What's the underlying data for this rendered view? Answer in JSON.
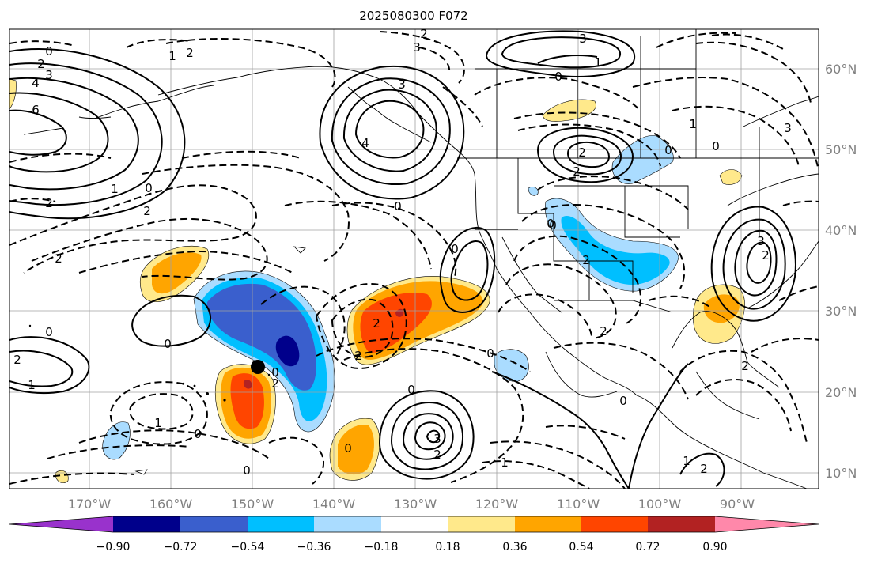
{
  "title": "2025080300 F072",
  "lon_labels": [
    "170°W",
    "160°W",
    "150°W",
    "140°W",
    "130°W",
    "120°W",
    "110°W",
    "100°W",
    "90°W"
  ],
  "lat_labels": [
    "60°N",
    "50°N",
    "40°N",
    "30°N",
    "20°N",
    "10°N"
  ],
  "colorbar": {
    "ticks": [
      "−0.90",
      "−0.72",
      "−0.54",
      "−0.36",
      "−0.18",
      "0.18",
      "0.36",
      "0.54",
      "0.72",
      "0.90"
    ],
    "colors": [
      "#9932cc",
      "#00008b",
      "#3a5fcd",
      "#00bfff",
      "#aadcff",
      "#ffffff",
      "#ffe98b",
      "#ffa500",
      "#ff4500",
      "#b22222",
      "#ff88aa"
    ]
  },
  "contour_labels": [
    "0",
    "2",
    "4",
    "3",
    "6",
    "2",
    "1",
    "0",
    "2",
    "4",
    "3",
    "2",
    "3",
    "0",
    "2",
    "1",
    "2",
    "0",
    "1",
    "3",
    "0",
    "2",
    "2",
    "0",
    "0",
    "2",
    "0",
    "0",
    "2",
    "2",
    "0",
    "0",
    "1",
    "1",
    "0",
    "2",
    "0",
    "2",
    "3",
    "0",
    "1",
    "2",
    "0",
    "2",
    "0",
    "0",
    "1",
    "2",
    "3",
    "2",
    "0",
    "1",
    "2",
    "3"
  ],
  "marker": "black-dot"
}
